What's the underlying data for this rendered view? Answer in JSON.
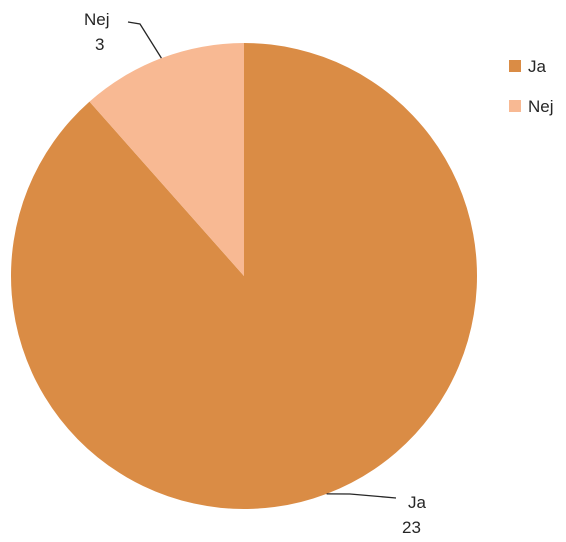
{
  "chart_data": {
    "type": "pie",
    "categories": [
      "Ja",
      "Nej"
    ],
    "values": [
      23,
      3
    ],
    "colors": [
      "#DA8C45",
      "#F8B993"
    ],
    "legend_position": "right",
    "start_angle": "12 o'clock, clockwise",
    "leader_line_color": "#262626"
  }
}
